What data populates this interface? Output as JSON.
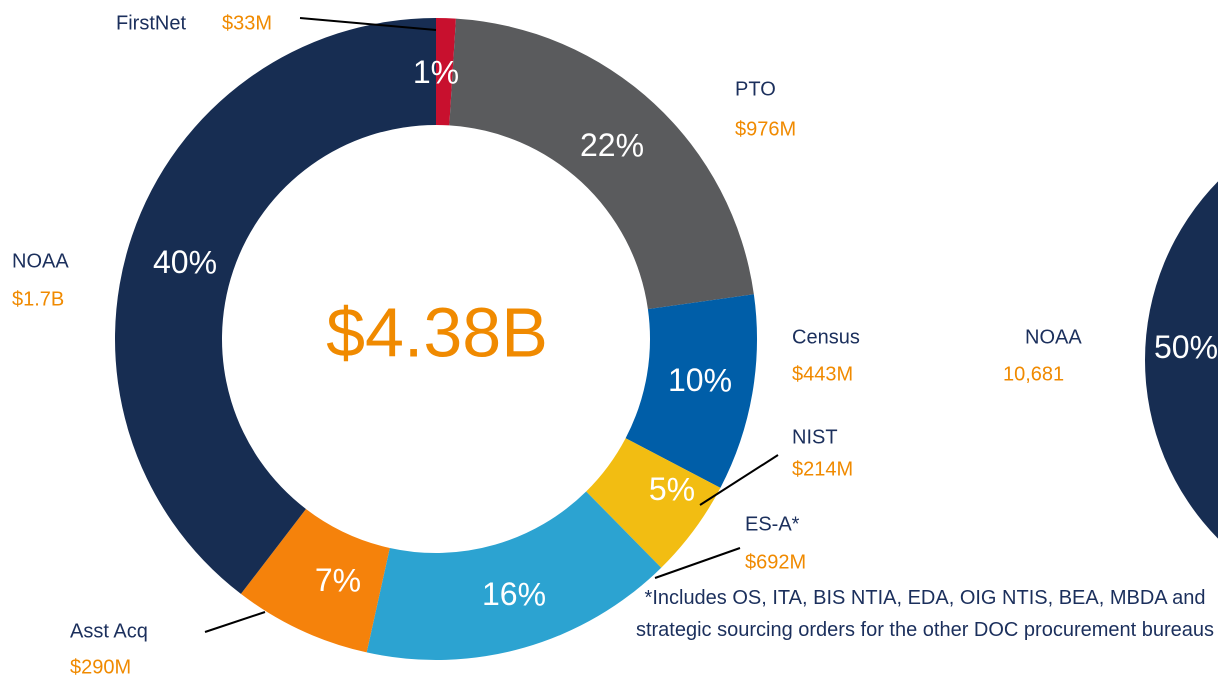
{
  "chart_data": [
    {
      "type": "donut",
      "center_label": "$4.38B",
      "categories": [
        "FirstNet",
        "PTO",
        "Census",
        "NIST",
        "ES-A*",
        "Asst Acq",
        "NOAA"
      ],
      "values": [
        1,
        22,
        10,
        5,
        16,
        7,
        40
      ],
      "amounts": [
        "$33M",
        "$976M",
        "$443M",
        "$214M",
        "$692M",
        "$290M",
        "$1.7B"
      ],
      "colors": [
        "#c8102e",
        "#5a5b5d",
        "#005ea8",
        "#f2bd12",
        "#2ca3d1",
        "#f5820b",
        "#172d52"
      ],
      "annotation": "*Includes OS, ITA, BIS NTIA, EDA, OIG NTIS, BEA, MBDA and strategic sourcing orders for the other DOC procurement bureaus"
    },
    {
      "type": "donut",
      "categories": [
        "NOAA"
      ],
      "values": [
        50
      ],
      "amounts": [
        "10,681"
      ],
      "colors": [
        "#172d52"
      ]
    }
  ]
}
